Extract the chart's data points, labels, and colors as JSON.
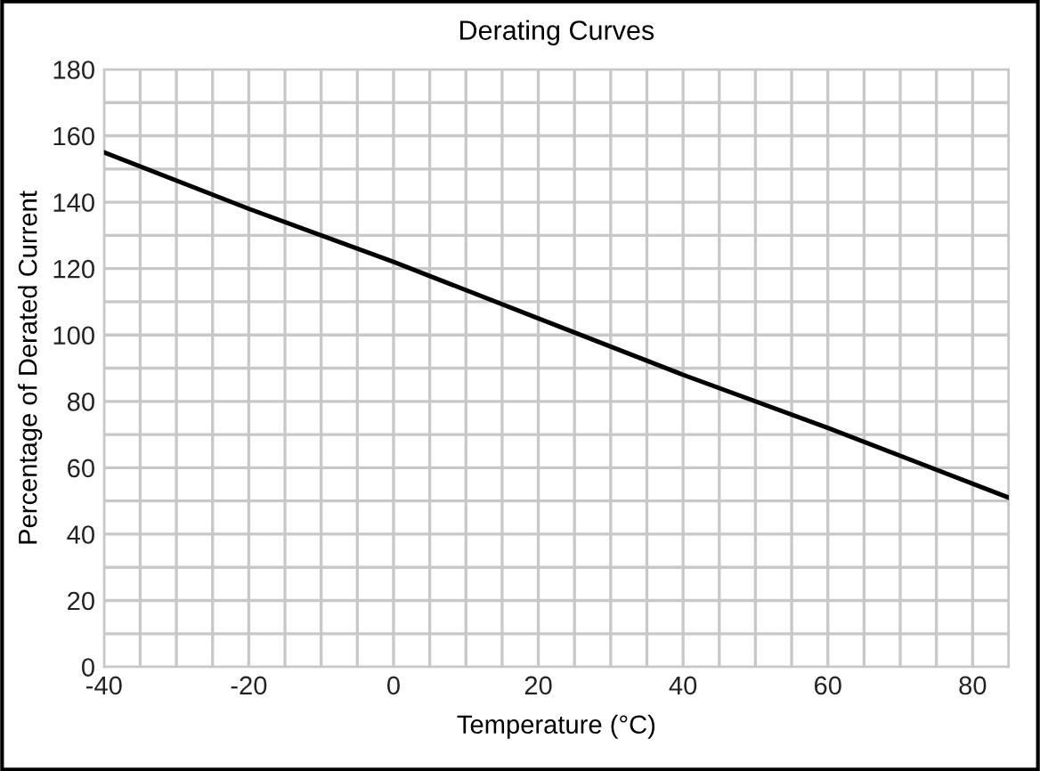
{
  "chart_data": {
    "type": "line",
    "title": "Derating Curves",
    "xlabel": "Temperature (°C)",
    "ylabel": "Percentage of Derated Current",
    "x": [
      -40,
      -20,
      0,
      20,
      40,
      60,
      85
    ],
    "series": [
      {
        "color": "#000000",
        "values": [
          155,
          138,
          122,
          105,
          88,
          72,
          51
        ]
      }
    ],
    "xlim": [
      -40,
      85
    ],
    "xticks": [
      -40,
      {
        "value": -35,
        "label": null
      },
      {
        "value": -30,
        "label": null
      },
      {
        "value": -25,
        "label": null
      },
      -20,
      {
        "value": -15,
        "label": null
      },
      {
        "value": -10,
        "label": null
      },
      {
        "value": -5,
        "label": null
      },
      0,
      {
        "value": 5,
        "label": null
      },
      {
        "value": 10,
        "label": null
      },
      {
        "value": 15,
        "label": null
      },
      20,
      {
        "value": 25,
        "label": null
      },
      {
        "value": 30,
        "label": null
      },
      {
        "value": 35,
        "label": null
      },
      40,
      {
        "value": 45,
        "label": null
      },
      {
        "value": 50,
        "label": null
      },
      {
        "value": 55,
        "label": null
      },
      60,
      {
        "value": 65,
        "label": null
      },
      {
        "value": 70,
        "label": null
      },
      {
        "value": 75,
        "label": null
      },
      80,
      {
        "value": 85,
        "label": null
      }
    ],
    "ylim": [
      0,
      180
    ],
    "yticks": [
      0,
      {
        "value": 10,
        "label": null
      },
      20,
      {
        "value": 30,
        "label": null
      },
      40,
      {
        "value": 50,
        "label": null
      },
      60,
      {
        "value": 70,
        "label": null
      },
      80,
      {
        "value": 90,
        "label": null
      },
      100,
      {
        "value": 110,
        "label": null
      },
      120,
      {
        "value": 130,
        "label": null
      },
      140,
      {
        "value": 150,
        "label": null
      },
      160,
      {
        "value": 170,
        "label": null
      },
      180
    ],
    "grid": true,
    "marker": "none",
    "line_style": "solid"
  }
}
